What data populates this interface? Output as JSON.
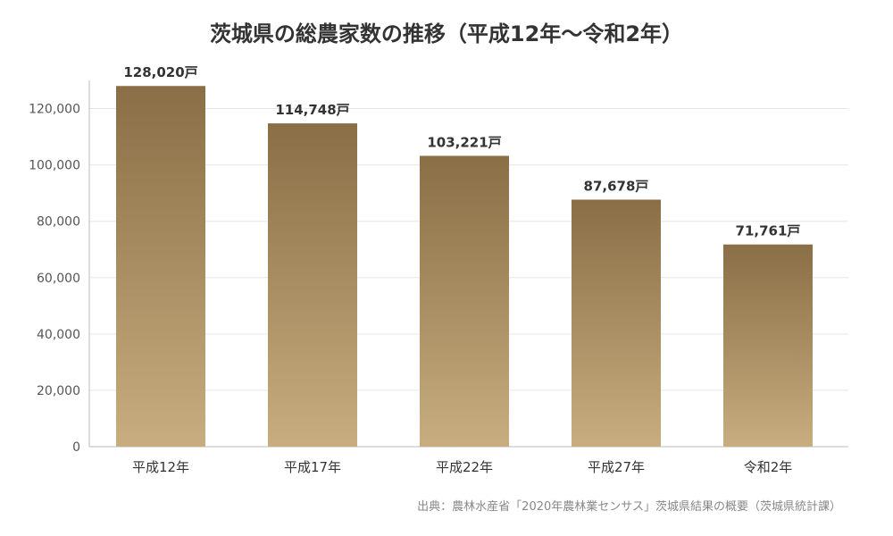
{
  "chart_data": {
    "type": "bar",
    "title": "茨城県の総農家数の推移（平成12年〜令和2年）",
    "categories": [
      "平成12年",
      "平成17年",
      "平成22年",
      "平成27年",
      "令和2年"
    ],
    "values": [
      128020,
      114748,
      103221,
      87678,
      71761
    ],
    "value_labels": [
      "128,020戸",
      "114,748戸",
      "103,221戸",
      "87,678戸",
      "71,761戸"
    ],
    "ylim": [
      0,
      130000
    ],
    "yticks": [
      0,
      20000,
      40000,
      60000,
      80000,
      100000,
      120000
    ],
    "ytick_labels": [
      "0",
      "20,000",
      "40,000",
      "60,000",
      "80,000",
      "100,000",
      "120,000"
    ],
    "grid": true,
    "bar_color_top": "#8a6e45",
    "bar_color_bottom": "#c8ad80",
    "source": "出典：農林水産省「2020年農林業センサス」茨城県結果の概要（茨城県統計課）"
  }
}
